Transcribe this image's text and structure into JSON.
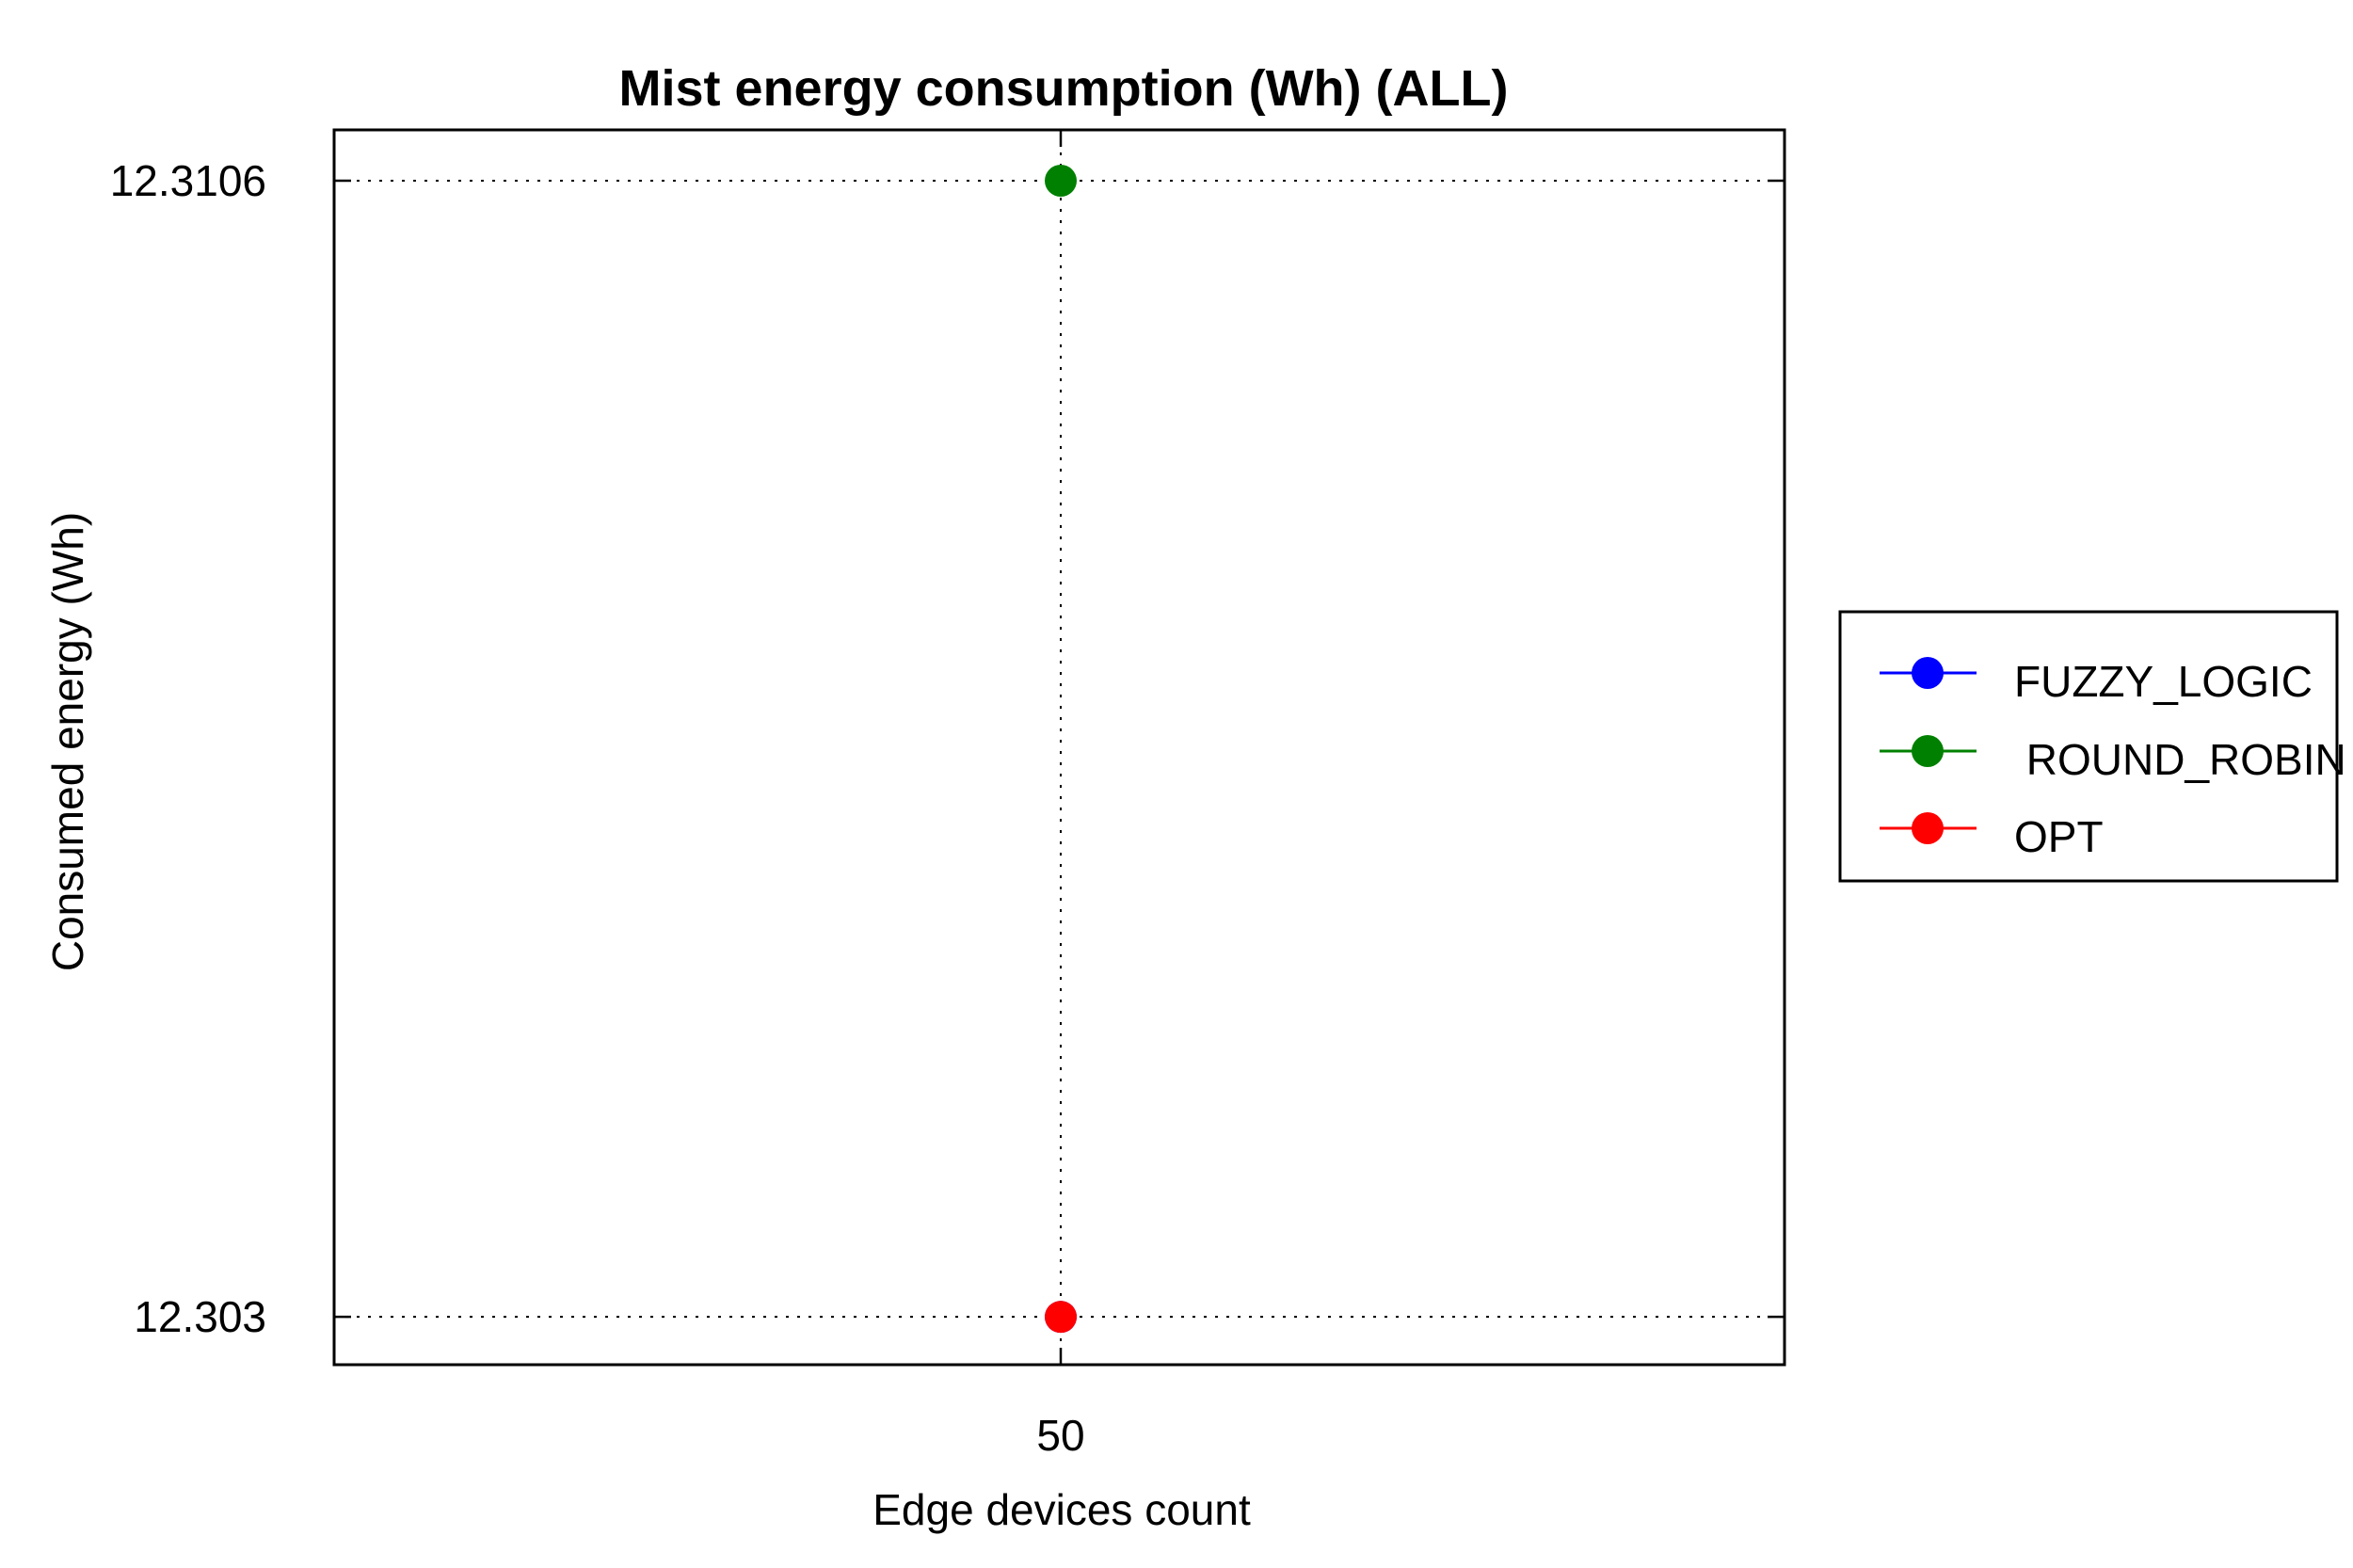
{
  "chart_data": {
    "type": "scatter",
    "title": "Mist energy consumption (Wh) (ALL)",
    "xlabel": "Edge devices count",
    "ylabel": "Consumed energy (Wh)",
    "x": [
      50
    ],
    "x_ticks": [
      "50"
    ],
    "y_ticks": [
      "12.3106",
      "12.303"
    ],
    "y_tick_values": [
      12.3106,
      12.303
    ],
    "ylim": [
      12.30268,
      12.31094
    ],
    "grid": true,
    "legend_position": "right",
    "series": [
      {
        "name": "FUZZY_LOGIC",
        "color": "#0000ff",
        "values": [
          12.303
        ]
      },
      {
        "name": " ROUND_ROBIN",
        "color": "#008000",
        "values": [
          12.3106
        ]
      },
      {
        "name": "OPT",
        "color": "#ff0000",
        "values": [
          12.303
        ]
      }
    ]
  }
}
